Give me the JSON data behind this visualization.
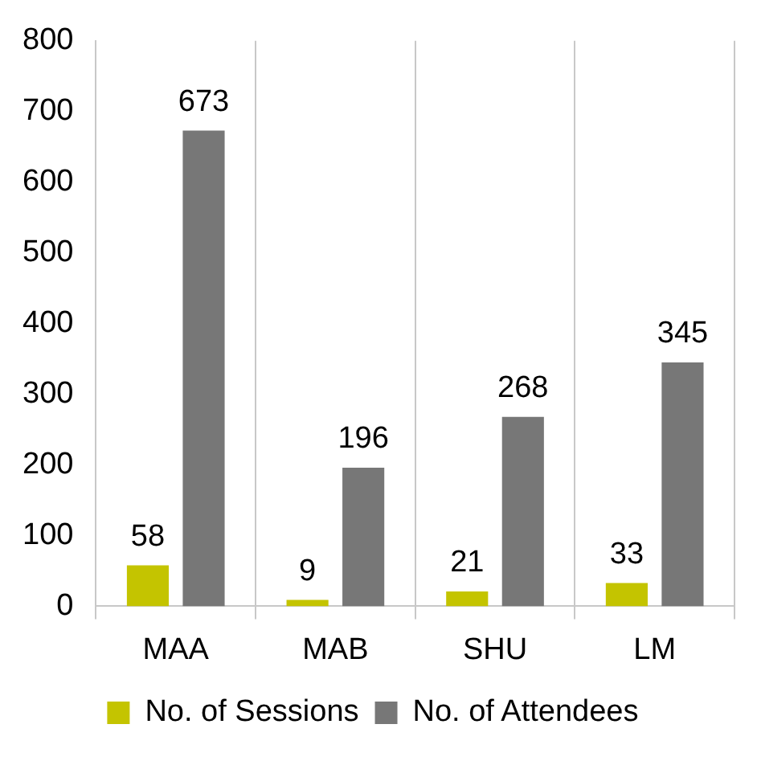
{
  "chart_data": {
    "type": "bar",
    "categories": [
      "MAA",
      "MAB",
      "SHU",
      "LM"
    ],
    "series": [
      {
        "name": "No. of Sessions",
        "color": "#c4c400",
        "values": [
          58,
          9,
          21,
          33
        ]
      },
      {
        "name": "No. of Attendees",
        "color": "#777777",
        "values": [
          673,
          196,
          268,
          345
        ]
      }
    ],
    "ylim": [
      0,
      800
    ],
    "yticks": [
      0,
      100,
      200,
      300,
      400,
      500,
      600,
      700,
      800
    ],
    "grid": "x",
    "legend": "bottom",
    "data_labels": true
  }
}
